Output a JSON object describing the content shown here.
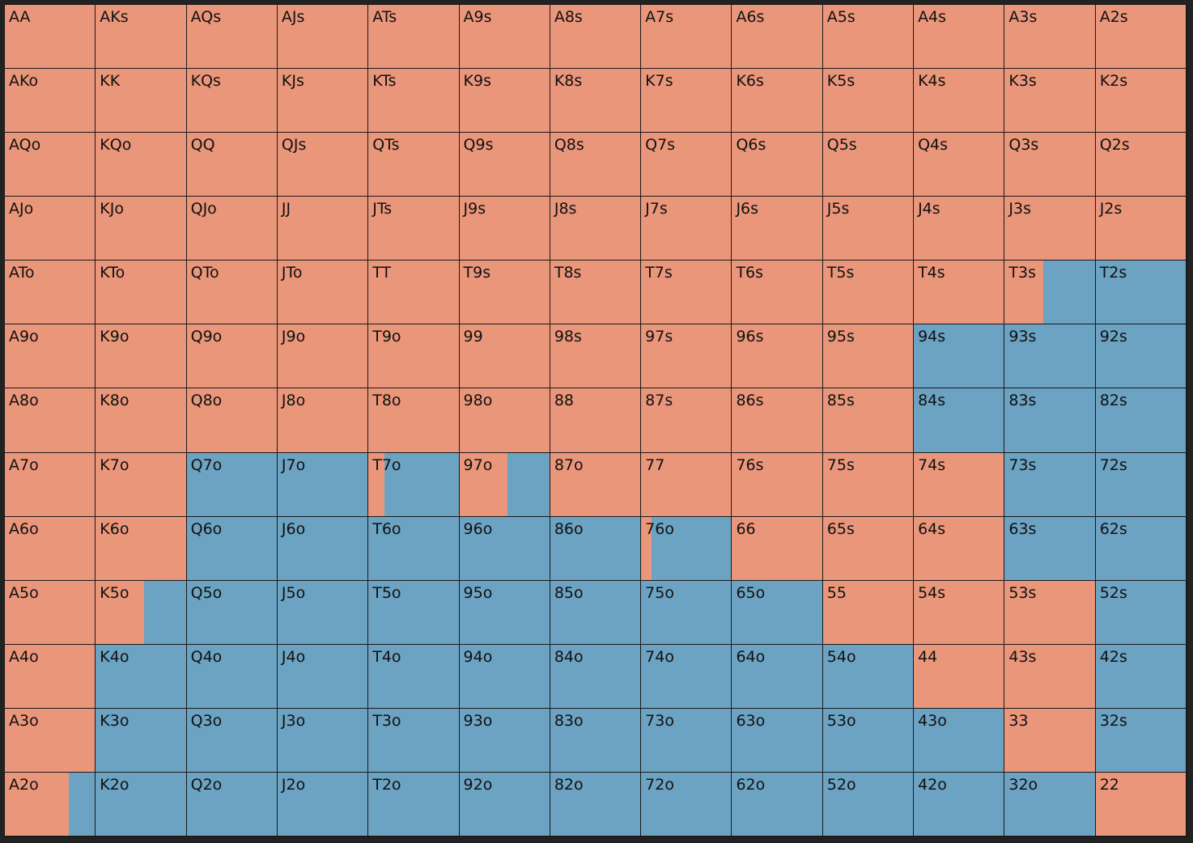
{
  "colors": {
    "raise": "#ea967a",
    "fold": "#6ca2c2"
  },
  "hands": [
    [
      "AA",
      "AKs",
      "AQs",
      "AJs",
      "ATs",
      "A9s",
      "A8s",
      "A7s",
      "A6s",
      "A5s",
      "A4s",
      "A3s",
      "A2s"
    ],
    [
      "AKo",
      "KK",
      "KQs",
      "KJs",
      "KTs",
      "K9s",
      "K8s",
      "K7s",
      "K6s",
      "K5s",
      "K4s",
      "K3s",
      "K2s"
    ],
    [
      "AQo",
      "KQo",
      "QQ",
      "QJs",
      "QTs",
      "Q9s",
      "Q8s",
      "Q7s",
      "Q6s",
      "Q5s",
      "Q4s",
      "Q3s",
      "Q2s"
    ],
    [
      "AJo",
      "KJo",
      "QJo",
      "JJ",
      "JTs",
      "J9s",
      "J8s",
      "J7s",
      "J6s",
      "J5s",
      "J4s",
      "J3s",
      "J2s"
    ],
    [
      "ATo",
      "KTo",
      "QTo",
      "JTo",
      "TT",
      "T9s",
      "T8s",
      "T7s",
      "T6s",
      "T5s",
      "T4s",
      "T3s",
      "T2s"
    ],
    [
      "A9o",
      "K9o",
      "Q9o",
      "J9o",
      "T9o",
      "99",
      "98s",
      "97s",
      "96s",
      "95s",
      "94s",
      "93s",
      "92s"
    ],
    [
      "A8o",
      "K8o",
      "Q8o",
      "J8o",
      "T8o",
      "98o",
      "88",
      "87s",
      "86s",
      "85s",
      "84s",
      "83s",
      "82s"
    ],
    [
      "A7o",
      "K7o",
      "Q7o",
      "J7o",
      "T7o",
      "97o",
      "87o",
      "77",
      "76s",
      "75s",
      "74s",
      "73s",
      "72s"
    ],
    [
      "A6o",
      "K6o",
      "Q6o",
      "J6o",
      "T6o",
      "96o",
      "86o",
      "76o",
      "66",
      "65s",
      "64s",
      "63s",
      "62s"
    ],
    [
      "A5o",
      "K5o",
      "Q5o",
      "J5o",
      "T5o",
      "95o",
      "85o",
      "75o",
      "65o",
      "55",
      "54s",
      "53s",
      "52s"
    ],
    [
      "A4o",
      "K4o",
      "Q4o",
      "J4o",
      "T4o",
      "94o",
      "84o",
      "74o",
      "64o",
      "54o",
      "44",
      "43s",
      "42s"
    ],
    [
      "A3o",
      "K3o",
      "Q3o",
      "J3o",
      "T3o",
      "93o",
      "83o",
      "73o",
      "63o",
      "53o",
      "43o",
      "33",
      "32s"
    ],
    [
      "A2o",
      "K2o",
      "Q2o",
      "J2o",
      "T2o",
      "92o",
      "82o",
      "72o",
      "62o",
      "52o",
      "42o",
      "32o",
      "22"
    ]
  ],
  "raise_fraction": [
    [
      1,
      1,
      1,
      1,
      1,
      1,
      1,
      1,
      1,
      1,
      1,
      1,
      1
    ],
    [
      1,
      1,
      1,
      1,
      1,
      1,
      1,
      1,
      1,
      1,
      1,
      1,
      1
    ],
    [
      1,
      1,
      1,
      1,
      1,
      1,
      1,
      1,
      1,
      1,
      1,
      1,
      1
    ],
    [
      1,
      1,
      1,
      1,
      1,
      1,
      1,
      1,
      1,
      1,
      1,
      1,
      1
    ],
    [
      1,
      1,
      1,
      1,
      1,
      1,
      1,
      1,
      1,
      1,
      1,
      0.43,
      0
    ],
    [
      1,
      1,
      1,
      1,
      1,
      1,
      1,
      1,
      1,
      1,
      0,
      0,
      0
    ],
    [
      1,
      1,
      1,
      1,
      1,
      1,
      1,
      1,
      1,
      1,
      0,
      0,
      0
    ],
    [
      1,
      1,
      0,
      0,
      0.18,
      0.53,
      1,
      1,
      1,
      1,
      1,
      0,
      0
    ],
    [
      1,
      1,
      0,
      0,
      0,
      0,
      0,
      0.12,
      1,
      1,
      1,
      0,
      0
    ],
    [
      1,
      0.54,
      0,
      0,
      0,
      0,
      0,
      0,
      0,
      1,
      1,
      1,
      0
    ],
    [
      1,
      0,
      0,
      0,
      0,
      0,
      0,
      0,
      0,
      0,
      1,
      1,
      0
    ],
    [
      1,
      0,
      0,
      0,
      0,
      0,
      0,
      0,
      0,
      0,
      0,
      1,
      0
    ],
    [
      0.71,
      0,
      0,
      0,
      0,
      0,
      0,
      0,
      0,
      0,
      0,
      0,
      1
    ]
  ]
}
